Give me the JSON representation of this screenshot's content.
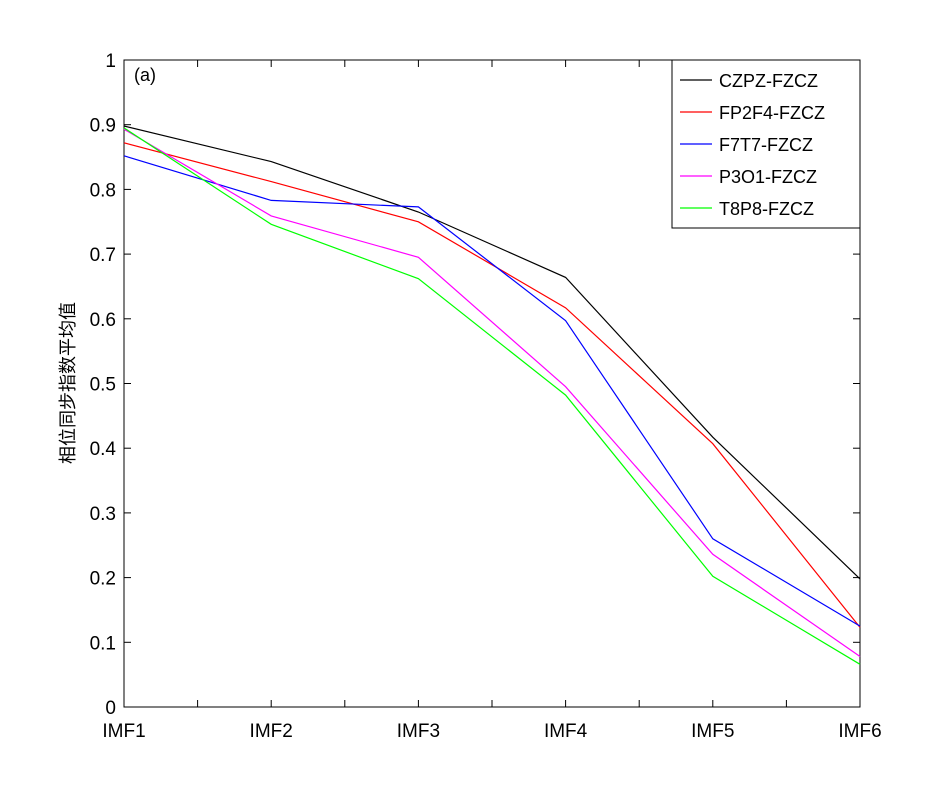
{
  "chart_data": {
    "type": "line",
    "title": "",
    "annotation": "(a)",
    "xlabel": "",
    "ylabel": "相位同步指数平均值",
    "categories": [
      "IMF1",
      "IMF2",
      "IMF3",
      "IMF4",
      "IMF5",
      "IMF6"
    ],
    "ylim": [
      0,
      1
    ],
    "yticks": [
      "0",
      "0.1",
      "0.2",
      "0.3",
      "0.4",
      "0.5",
      "0.6",
      "0.7",
      "0.8",
      "0.9",
      "1"
    ],
    "grid": false,
    "legend_position": "top-right",
    "series": [
      {
        "name": "CZPZ-FZCZ",
        "color": "#000000",
        "values": [
          0.898,
          0.843,
          0.765,
          0.664,
          0.417,
          0.198
        ]
      },
      {
        "name": "FP2F4-FZCZ",
        "color": "#ff0000",
        "values": [
          0.872,
          0.812,
          0.75,
          0.617,
          0.407,
          0.123
        ]
      },
      {
        "name": "F7T7-FZCZ",
        "color": "#0000ff",
        "values": [
          0.852,
          0.783,
          0.773,
          0.597,
          0.26,
          0.125
        ]
      },
      {
        "name": "P3O1-FZCZ",
        "color": "#ff00ff",
        "values": [
          0.893,
          0.759,
          0.695,
          0.495,
          0.236,
          0.078
        ]
      },
      {
        "name": "T8P8-FZCZ",
        "color": "#00ff00",
        "values": [
          0.895,
          0.746,
          0.662,
          0.482,
          0.202,
          0.066
        ]
      }
    ]
  }
}
